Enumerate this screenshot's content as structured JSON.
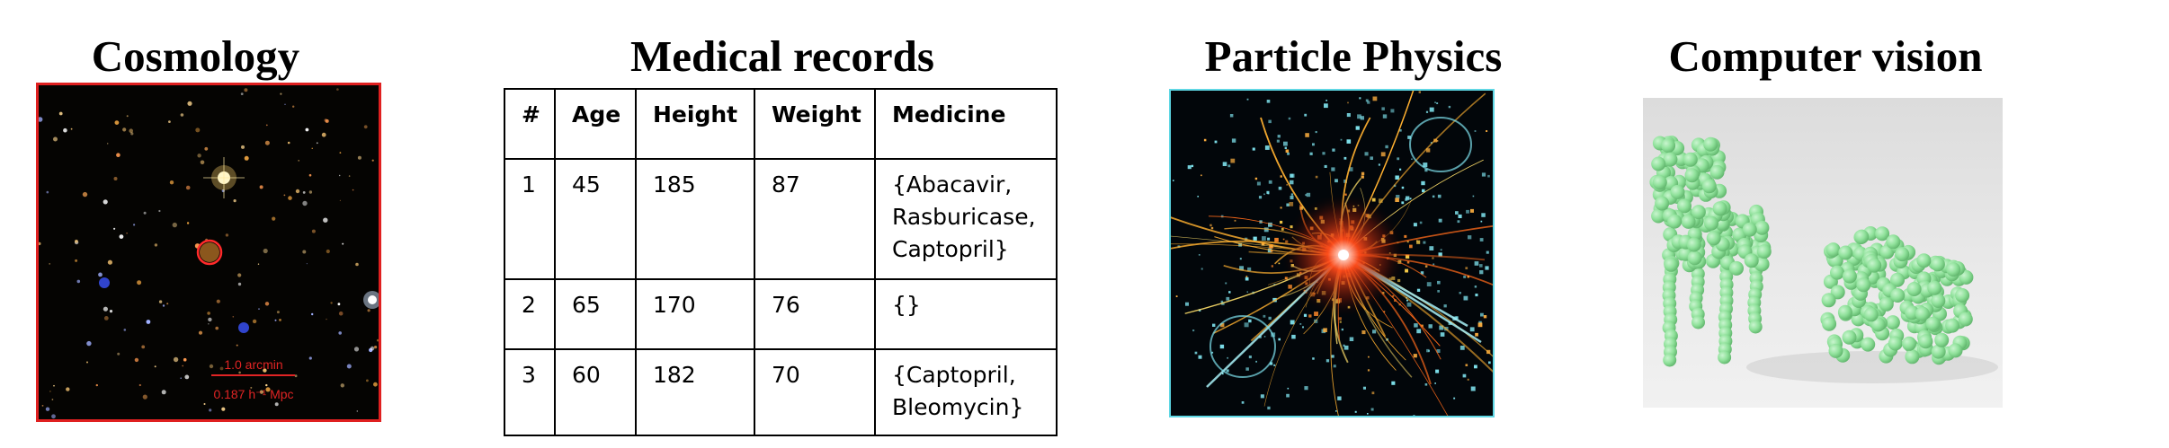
{
  "panels": {
    "cosmology": {
      "title": "Cosmology"
    },
    "medical": {
      "title": "Medical records"
    },
    "particle": {
      "title": "Particle Physics"
    },
    "computer_vision": {
      "title": "Computer vision"
    }
  },
  "cosmology": {
    "scale_bar_top": "1.0 arcmin",
    "scale_bar_bottom": "0.187 h⁻¹ Mpc",
    "scale_color": "#e02424"
  },
  "medical_table": {
    "headers": [
      "#",
      "Age",
      "Height",
      "Weight",
      "Medicine"
    ],
    "rows": [
      [
        "1",
        "45",
        "185",
        "87",
        "{Abacavir,\nRasburicase,\n Captopril}"
      ],
      [
        "2",
        "65",
        "170",
        "76",
        "{}"
      ],
      [
        "3",
        "60",
        "182",
        "70",
        "{Captopril,\nBleomycin}"
      ]
    ]
  },
  "computer_vision": {
    "object_color": "#8fe19a",
    "objects": [
      "chair",
      "car"
    ]
  }
}
